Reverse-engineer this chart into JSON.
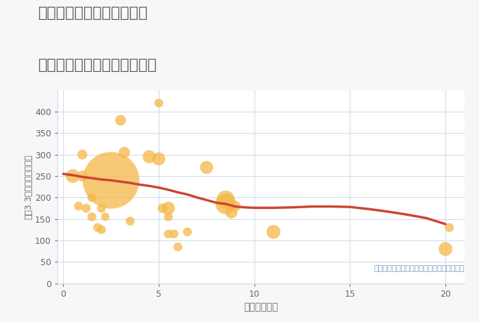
{
  "title_line1": "神奈川県横浜市中区塚越の",
  "title_line2": "駅距離別中古マンション価格",
  "xlabel": "駅距離（分）",
  "ylabel": "坪（3.3㎡）単価（万円）",
  "annotation": "円の大きさは、取引のあった物件面積を示す",
  "background_color": "#f7f7f7",
  "plot_bg_color": "#ffffff",
  "grid_color": "#ccd9e8",
  "title_color": "#555555",
  "axis_label_color": "#666666",
  "annotation_color": "#7899bb",
  "bubble_color": "#f5b848",
  "bubble_alpha": 0.75,
  "line_color": "#cc4433",
  "xlim": [
    -0.3,
    21
  ],
  "ylim": [
    0,
    450
  ],
  "yticks": [
    0,
    50,
    100,
    150,
    200,
    250,
    300,
    350,
    400
  ],
  "xticks": [
    0,
    5,
    10,
    15,
    20
  ],
  "scatter_x": [
    0.5,
    0.8,
    1.0,
    1.0,
    1.2,
    1.5,
    1.5,
    1.8,
    2.0,
    2.0,
    2.2,
    2.5,
    3.0,
    3.2,
    3.5,
    4.5,
    5.0,
    5.0,
    5.2,
    5.5,
    5.5,
    5.5,
    5.8,
    6.0,
    6.5,
    7.5,
    8.5,
    8.5,
    8.8,
    9.0,
    11.0,
    20.0,
    20.2
  ],
  "scatter_y": [
    250,
    180,
    300,
    250,
    175,
    155,
    200,
    130,
    125,
    175,
    155,
    240,
    380,
    305,
    145,
    295,
    420,
    290,
    175,
    175,
    155,
    115,
    115,
    85,
    120,
    270,
    195,
    185,
    165,
    180,
    120,
    80,
    130
  ],
  "scatter_size": [
    200,
    80,
    100,
    120,
    80,
    80,
    80,
    80,
    80,
    80,
    70,
    3500,
    120,
    130,
    80,
    180,
    80,
    180,
    100,
    180,
    80,
    80,
    80,
    80,
    80,
    180,
    350,
    450,
    150,
    120,
    200,
    200,
    80
  ],
  "trend_x": [
    0,
    0.5,
    1,
    1.5,
    2,
    2.5,
    3,
    3.5,
    4,
    4.5,
    5,
    5.5,
    6,
    6.5,
    7,
    7.5,
    8,
    8.5,
    9,
    9.5,
    10,
    11,
    12,
    13,
    14,
    15,
    16,
    17,
    18,
    19,
    20
  ],
  "trend_y": [
    255,
    252,
    248,
    245,
    242,
    240,
    237,
    234,
    230,
    227,
    223,
    218,
    212,
    207,
    200,
    194,
    188,
    185,
    179,
    177,
    176,
    176,
    177,
    179,
    179,
    178,
    173,
    167,
    160,
    152,
    138
  ]
}
